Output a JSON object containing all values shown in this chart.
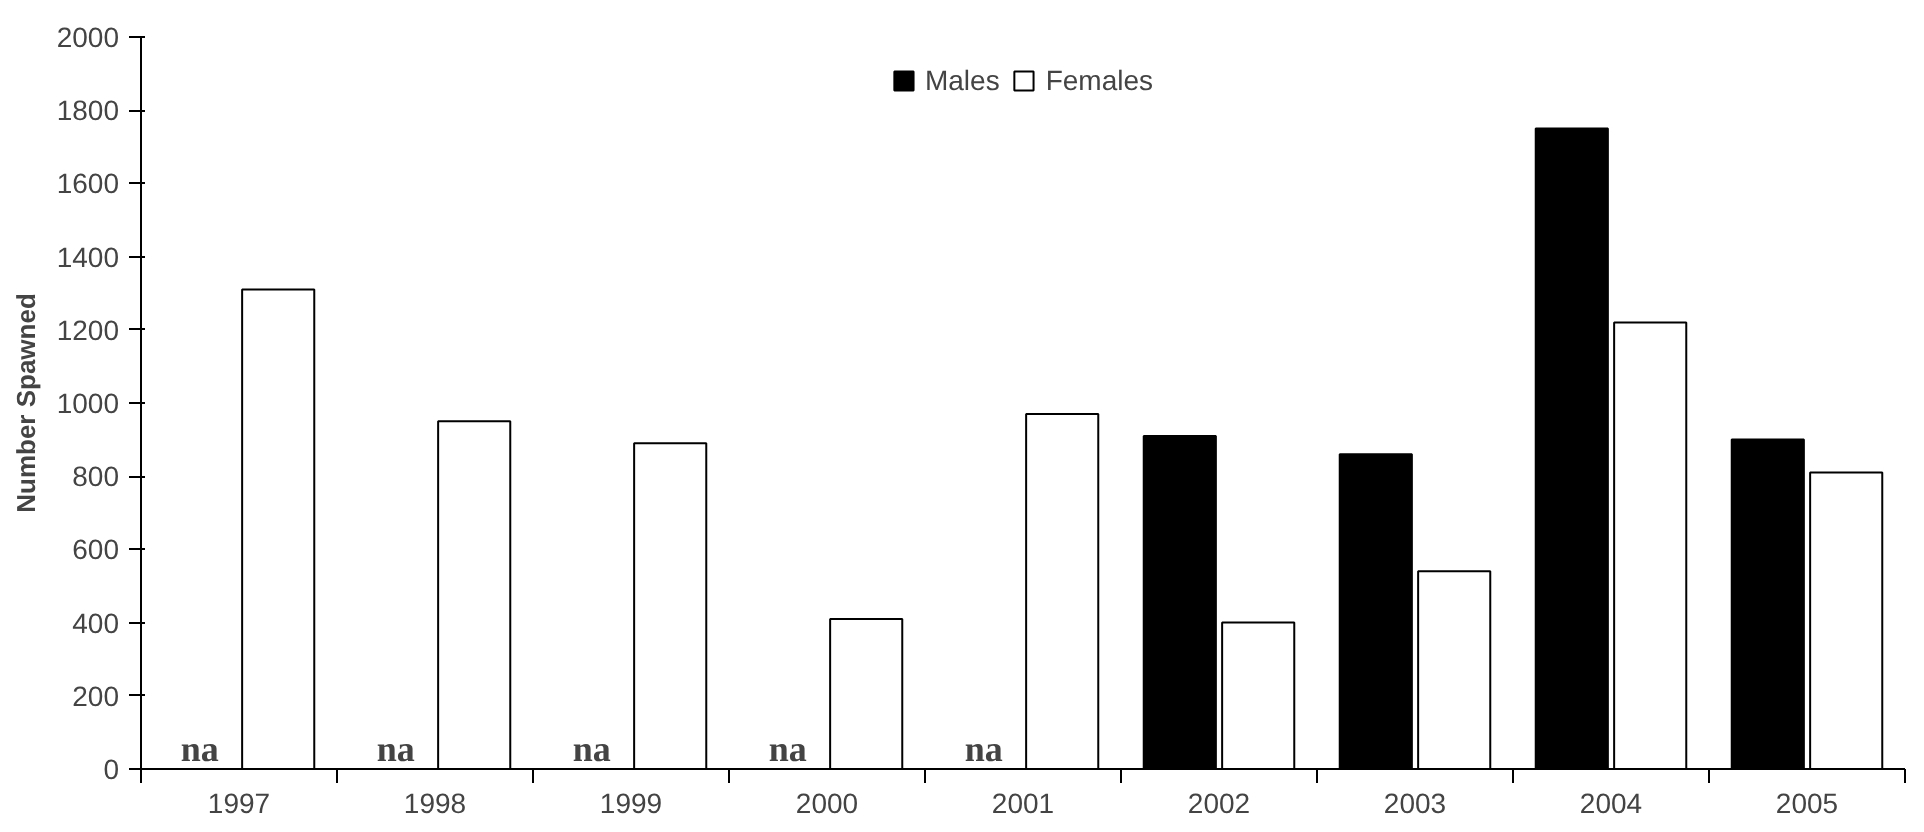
{
  "chart_data": {
    "type": "bar",
    "ylabel": "Number Spawned",
    "categories": [
      "1997",
      "1998",
      "1999",
      "2000",
      "2001",
      "2002",
      "2003",
      "2004",
      "2005"
    ],
    "series": [
      {
        "name": "Males",
        "color": "#000000",
        "values": [
          null,
          null,
          null,
          null,
          null,
          910,
          860,
          1750,
          900
        ],
        "value_labels": [
          "na",
          "na",
          "na",
          "na",
          "na",
          null,
          null,
          null,
          null
        ]
      },
      {
        "name": "Females",
        "color": "#ffffff",
        "values": [
          1310,
          950,
          890,
          410,
          970,
          400,
          540,
          1220,
          810
        ]
      }
    ],
    "ylim": [
      0,
      2000
    ],
    "yticks": [
      0,
      200,
      400,
      600,
      800,
      1000,
      1200,
      1400,
      1600,
      1800,
      2000
    ],
    "grid": false,
    "legend": "top"
  }
}
